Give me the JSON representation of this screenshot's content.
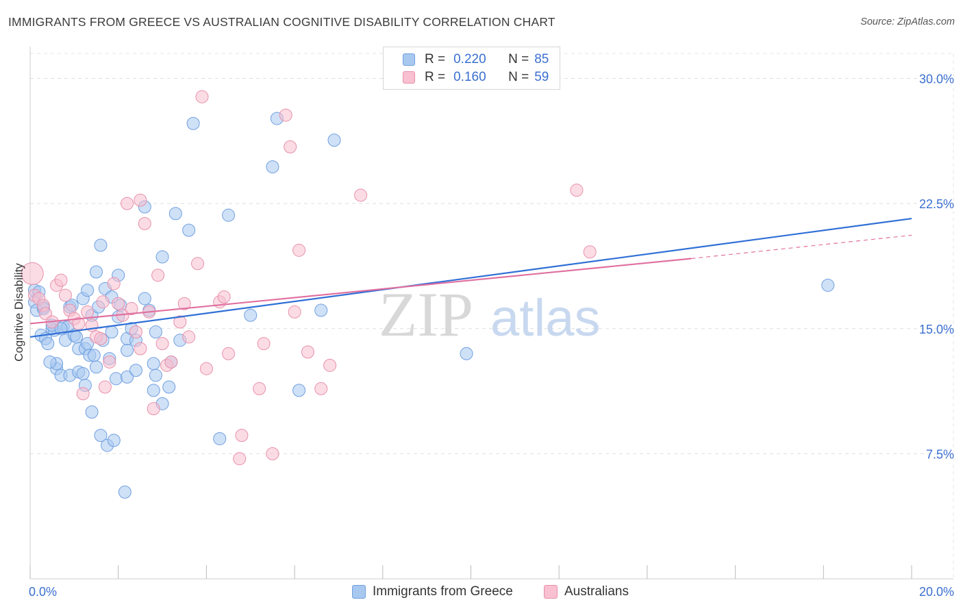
{
  "title": "IMMIGRANTS FROM GREECE VS AUSTRALIAN COGNITIVE DISABILITY CORRELATION CHART",
  "source": "Source: ZipAtlas.com",
  "watermark": {
    "part1": "ZIP",
    "part2": "atlas"
  },
  "legend_top": {
    "rows": [
      {
        "r_label": "R =",
        "r_value": "0.220",
        "n_label": "N =",
        "n_value": "85",
        "color": "#a8c8f0",
        "stroke": "#6f9fe0"
      },
      {
        "r_label": "R =",
        "r_value": "0.160",
        "n_label": "N =",
        "n_value": "59",
        "color": "#f8c0d0",
        "stroke": "#e890aa"
      }
    ]
  },
  "legend_bottom": {
    "items": [
      {
        "label": "Immigrants from Greece",
        "color": "#a8c8f0",
        "stroke": "#6f9fe0"
      },
      {
        "label": "Australians",
        "color": "#f8c0d0",
        "stroke": "#e890aa"
      }
    ]
  },
  "chart_data": {
    "type": "scatter",
    "title": "IMMIGRANTS FROM GREECE VS AUSTRALIAN COGNITIVE DISABILITY CORRELATION CHART",
    "xlabel": "",
    "ylabel": "Cognitive Disability",
    "xlim": [
      0,
      20
    ],
    "ylim": [
      0,
      31.5
    ],
    "x_tick_labels": [
      {
        "value": 0,
        "label": "0.0%"
      },
      {
        "value": 20,
        "label": "20.0%"
      }
    ],
    "y_tick_labels": [
      {
        "value": 7.5,
        "label": "7.5%"
      },
      {
        "value": 15,
        "label": "15.0%"
      },
      {
        "value": 22.5,
        "label": "22.5%"
      },
      {
        "value": 30,
        "label": "30.0%"
      }
    ],
    "grid": true,
    "legend_position": "top-center",
    "series": [
      {
        "name": "Immigrants from Greece",
        "color": "#6f9fe0",
        "fill": "#a8c8f0",
        "trend": {
          "x0": 0,
          "y0": 14.5,
          "x1": 20,
          "y1": 21.6,
          "color": "#2f6fd6"
        },
        "points": [
          [
            0.1,
            17.3
          ],
          [
            0.1,
            16.6
          ],
          [
            0.15,
            16.1
          ],
          [
            0.2,
            17.2
          ],
          [
            0.3,
            16.3
          ],
          [
            0.3,
            16.2
          ],
          [
            0.25,
            14.6
          ],
          [
            0.35,
            14.4
          ],
          [
            0.4,
            14.1
          ],
          [
            0.5,
            15.0
          ],
          [
            0.55,
            14.9
          ],
          [
            0.6,
            12.6
          ],
          [
            0.6,
            12.9
          ],
          [
            0.7,
            12.2
          ],
          [
            0.75,
            15.1
          ],
          [
            0.8,
            14.3
          ],
          [
            0.85,
            15.1
          ],
          [
            0.9,
            16.3
          ],
          [
            0.9,
            12.2
          ],
          [
            1.0,
            14.6
          ],
          [
            1.1,
            13.8
          ],
          [
            1.1,
            12.4
          ],
          [
            1.2,
            12.3
          ],
          [
            1.2,
            16.8
          ],
          [
            1.25,
            13.8
          ],
          [
            1.3,
            14.1
          ],
          [
            1.3,
            17.3
          ],
          [
            1.35,
            13.4
          ],
          [
            1.4,
            15.8
          ],
          [
            1.4,
            10.0
          ],
          [
            1.45,
            13.4
          ],
          [
            1.5,
            12.7
          ],
          [
            1.5,
            18.4
          ],
          [
            1.6,
            8.6
          ],
          [
            1.6,
            20.0
          ],
          [
            1.7,
            17.4
          ],
          [
            1.75,
            8.0
          ],
          [
            1.8,
            13.2
          ],
          [
            1.85,
            14.8
          ],
          [
            1.85,
            16.9
          ],
          [
            1.9,
            8.3
          ],
          [
            1.95,
            12.0
          ],
          [
            2.0,
            15.7
          ],
          [
            2.0,
            18.2
          ],
          [
            2.05,
            16.4
          ],
          [
            2.2,
            13.7
          ],
          [
            2.2,
            14.4
          ],
          [
            2.15,
            5.2
          ],
          [
            2.2,
            12.1
          ],
          [
            2.4,
            12.5
          ],
          [
            2.4,
            14.3
          ],
          [
            2.6,
            16.8
          ],
          [
            2.6,
            22.3
          ],
          [
            2.7,
            16.1
          ],
          [
            2.8,
            12.9
          ],
          [
            2.8,
            11.3
          ],
          [
            2.85,
            14.8
          ],
          [
            2.85,
            12.2
          ],
          [
            3.0,
            19.3
          ],
          [
            3.0,
            10.5
          ],
          [
            3.15,
            11.5
          ],
          [
            3.3,
            21.9
          ],
          [
            3.4,
            14.3
          ],
          [
            3.6,
            20.9
          ],
          [
            3.7,
            27.3
          ],
          [
            4.3,
            8.4
          ],
          [
            4.5,
            21.8
          ],
          [
            5.0,
            15.8
          ],
          [
            5.5,
            24.7
          ],
          [
            5.6,
            27.6
          ],
          [
            6.1,
            11.3
          ],
          [
            6.6,
            16.1
          ],
          [
            6.9,
            26.3
          ],
          [
            9.9,
            13.5
          ],
          [
            18.1,
            17.6
          ],
          [
            0.5,
            15.2
          ],
          [
            0.7,
            15.0
          ],
          [
            1.05,
            14.5
          ],
          [
            0.45,
            13.0
          ],
          [
            1.55,
            16.3
          ],
          [
            2.3,
            15.0
          ],
          [
            3.2,
            13.0
          ],
          [
            1.25,
            11.6
          ],
          [
            0.95,
            16.4
          ],
          [
            1.65,
            14.3
          ]
        ]
      },
      {
        "name": "Australians",
        "color": "#e890aa",
        "fill": "#f8c0d0",
        "trend": {
          "x0": 0,
          "y0": 15.3,
          "x1": 15.0,
          "y1": 19.2,
          "dash_x1": 20,
          "dash_y1": 20.6,
          "color": "#e070a0"
        },
        "points": [
          [
            0.05,
            18.3
          ],
          [
            0.1,
            17.0
          ],
          [
            0.2,
            16.8
          ],
          [
            0.3,
            16.4
          ],
          [
            0.35,
            15.9
          ],
          [
            0.5,
            15.4
          ],
          [
            0.6,
            17.6
          ],
          [
            0.7,
            17.9
          ],
          [
            0.8,
            17.0
          ],
          [
            0.9,
            16.1
          ],
          [
            1.0,
            15.6
          ],
          [
            1.1,
            15.3
          ],
          [
            1.2,
            11.1
          ],
          [
            1.3,
            16.0
          ],
          [
            1.4,
            15.2
          ],
          [
            1.5,
            14.5
          ],
          [
            1.6,
            14.4
          ],
          [
            1.65,
            16.6
          ],
          [
            1.7,
            11.5
          ],
          [
            1.8,
            13.0
          ],
          [
            1.9,
            17.7
          ],
          [
            2.0,
            16.5
          ],
          [
            2.1,
            15.8
          ],
          [
            2.2,
            22.5
          ],
          [
            2.3,
            16.2
          ],
          [
            2.4,
            14.8
          ],
          [
            2.5,
            13.8
          ],
          [
            2.5,
            22.7
          ],
          [
            2.6,
            21.3
          ],
          [
            2.7,
            16.0
          ],
          [
            2.8,
            10.2
          ],
          [
            2.9,
            18.2
          ],
          [
            3.0,
            14.1
          ],
          [
            3.1,
            12.8
          ],
          [
            3.2,
            13.0
          ],
          [
            3.4,
            15.4
          ],
          [
            3.5,
            16.5
          ],
          [
            3.6,
            14.5
          ],
          [
            3.8,
            18.9
          ],
          [
            3.9,
            28.9
          ],
          [
            4.0,
            12.6
          ],
          [
            4.3,
            16.6
          ],
          [
            4.4,
            16.9
          ],
          [
            4.5,
            13.5
          ],
          [
            4.8,
            8.6
          ],
          [
            4.75,
            7.2
          ],
          [
            5.2,
            11.4
          ],
          [
            5.3,
            14.1
          ],
          [
            5.5,
            7.5
          ],
          [
            5.8,
            27.8
          ],
          [
            5.9,
            25.9
          ],
          [
            6.0,
            16.0
          ],
          [
            6.1,
            19.7
          ],
          [
            6.3,
            13.6
          ],
          [
            6.6,
            11.4
          ],
          [
            6.8,
            12.8
          ],
          [
            7.5,
            23.0
          ],
          [
            12.4,
            23.3
          ],
          [
            12.7,
            19.6
          ]
        ]
      }
    ]
  }
}
